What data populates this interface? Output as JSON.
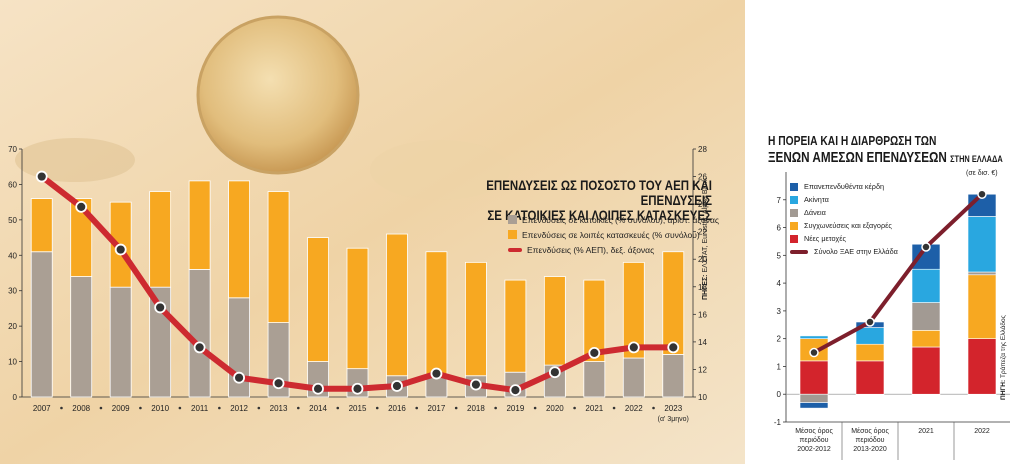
{
  "chart_data": [
    {
      "type": "bar",
      "title": "ΕΠΕΝΔΥΣΕΙΣ ΩΣ ΠΟΣΟΣΤΟ ΤΟΥ ΑΕΠ ΚΑΙ ΕΠΕΝΔΥΣΕΙΣ ΣΕ ΚΑΤΟΙΚΙΕΣ ΚΑΙ ΛΟΙΠΕΣ ΚΑΤΑΣΚΕΥΕΣ",
      "title_line1": "ΕΠΕΝΔΥΣΕΙΣ ΩΣ ΠΟΣΟΣΤΟ ΤΟΥ ΑΕΠ ΚΑΙ ΕΠΕΝΔΥΣΕΙΣ",
      "title_line2": "ΣΕ ΚΑΤΟΙΚΙΕΣ ΚΑΙ ΛΟΙΠΕΣ ΚΑΤΑΣΚΕΥΕΣ",
      "categories": [
        "2007",
        "2008",
        "2009",
        "2010",
        "2011",
        "2012",
        "2013",
        "2014",
        "2015",
        "2016",
        "2017",
        "2018",
        "2019",
        "2020",
        "2021",
        "2022",
        "2023"
      ],
      "category_note": "(α' 3μηνο)",
      "series": [
        {
          "name": "Επενδύσεις σε κατοικίες (% συνόλου), αριστ. άξονας",
          "kind": "stacked-bar",
          "axis": "left",
          "color": "#aa9f94",
          "values": [
            41,
            34,
            31,
            31,
            36,
            28,
            21,
            10,
            8,
            6,
            6,
            6,
            7,
            9,
            10,
            11,
            12
          ]
        },
        {
          "name": "Επενδύσεις σε λοιπές κατασκευές (% συνόλου)",
          "kind": "stacked-bar",
          "axis": "left",
          "color": "#f7a821",
          "values": [
            15,
            22,
            24,
            27,
            25,
            33,
            37,
            35,
            34,
            40,
            35,
            32,
            26,
            25,
            23,
            27,
            29
          ]
        },
        {
          "name": "Επενδύσεις (% ΑΕΠ), δεξ. άξονας",
          "kind": "line",
          "axis": "right",
          "color": "#cd2a30",
          "values": [
            26,
            23.8,
            20.7,
            16.5,
            13.6,
            11.4,
            11.0,
            10.6,
            10.6,
            10.8,
            11.7,
            10.9,
            10.5,
            11.8,
            13.2,
            13.6,
            13.6
          ]
        }
      ],
      "ylim_left": [
        0,
        70
      ],
      "yticks_left": [
        0,
        10,
        20,
        30,
        40,
        50,
        60,
        70
      ],
      "ylim_right": [
        10,
        28
      ],
      "yticks_right": [
        10,
        12,
        14,
        16,
        18,
        20,
        22,
        24,
        26,
        28
      ],
      "legend_placement": "top-right",
      "source_label": "ΠΗΓΕΣ:",
      "source_text": "ΕΛΣΤΑΤ, Eurostat, Alpha Bank"
    },
    {
      "type": "bar",
      "title_line1": "Η ΠΟΡΕΙΑ ΚΑΙ Η ΔΙΑΡΘΡΩΣΗ ΤΩΝ",
      "title_line2": "ΞΕΝΩΝ ΑΜΕΣΩΝ ΕΠΕΝΔΥΣΕΩΝ",
      "title_line2_small": "ΣΤΗΝ ΕΛΛΑΔΑ",
      "unit": "(σε δισ. €)",
      "categories": [
        [
          "Μέσος όρος",
          "περιόδου",
          "2002-2012"
        ],
        [
          "Μέσος όρος",
          "περιόδου",
          "2013-2020"
        ],
        [
          "2021"
        ],
        [
          "2022"
        ]
      ],
      "series": [
        {
          "name": "Νέες μετοχές",
          "color": "#d3242c",
          "values": [
            1.2,
            1.2,
            1.7,
            2.0
          ]
        },
        {
          "name": "Συγχωνεύσεις και εξαγορές",
          "color": "#f7a821",
          "values": [
            0.8,
            0.6,
            0.6,
            2.3
          ]
        },
        {
          "name": "Δάνεια",
          "color": "#a29a93",
          "values": [
            -0.3,
            0,
            1.0,
            0.1
          ]
        },
        {
          "name": "Ακίνητα",
          "color": "#29a7e0",
          "values": [
            0.1,
            0.6,
            1.2,
            2.0
          ]
        },
        {
          "name": "Επανεπενδυθέντα κέρδη",
          "color": "#1d5fa8",
          "values": [
            -0.2,
            0.2,
            0.9,
            0.8
          ]
        }
      ],
      "line": {
        "name": "Σύνολο ΞΑΕ στην Ελλάδα",
        "color": "#7d1f2c",
        "values": [
          1.5,
          2.6,
          5.3,
          7.2
        ]
      },
      "ylim": [
        -1,
        8
      ],
      "yticks": [
        -1,
        0,
        1,
        2,
        3,
        4,
        5,
        6,
        7
      ],
      "legend_placement": "top-left",
      "source_label": "ΠΗΓΗ:",
      "source_text": "Τράπεζα της Ελλάδος"
    }
  ]
}
